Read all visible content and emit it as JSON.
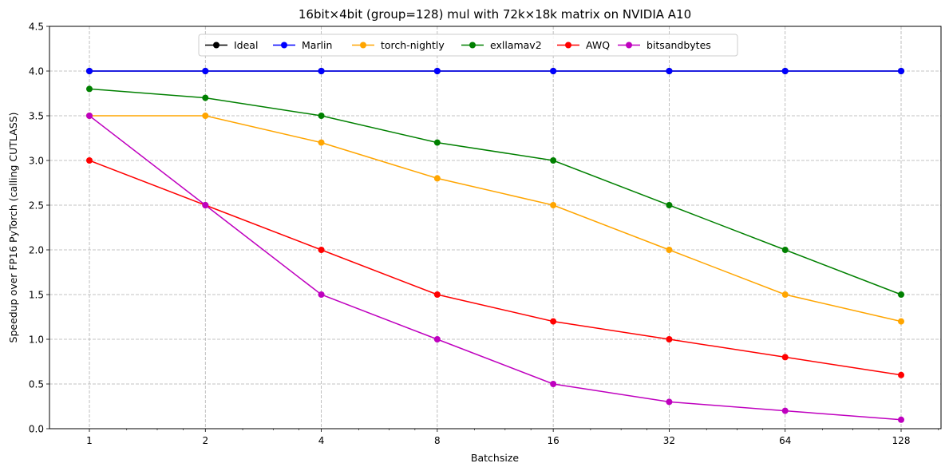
{
  "chart_data": {
    "type": "line",
    "title": "16bit×4bit (group=128) mul with 72k×18k matrix on NVIDIA A10",
    "xlabel": "Batchsize",
    "ylabel": "Speedup over FP16 PyTorch (calling CUTLASS)",
    "x_scale": "log2",
    "categories": [
      "1",
      "2",
      "4",
      "8",
      "16",
      "32",
      "64",
      "128"
    ],
    "x": [
      1,
      2,
      4,
      8,
      16,
      32,
      64,
      128
    ],
    "ylim": [
      0,
      4.5
    ],
    "yticks": [
      "0.0",
      "0.5",
      "1.0",
      "1.5",
      "2.0",
      "2.5",
      "3.0",
      "3.5",
      "4.0",
      "4.5"
    ],
    "grid": true,
    "legend_position": "top-center",
    "series": [
      {
        "name": "Ideal",
        "color": "#000000",
        "values": [
          4,
          4,
          4,
          4,
          4,
          4,
          4,
          4
        ]
      },
      {
        "name": "Marlin",
        "color": "#0000ff",
        "values": [
          4,
          4,
          4,
          4,
          4,
          4,
          4,
          4
        ]
      },
      {
        "name": "torch-nightly",
        "color": "#ffa500",
        "values": [
          3.5,
          3.5,
          3.2,
          2.8,
          2.5,
          2.0,
          1.5,
          1.2
        ]
      },
      {
        "name": "exllamav2",
        "color": "#008000",
        "values": [
          3.8,
          3.7,
          3.5,
          3.2,
          3.0,
          2.5,
          2.0,
          1.5
        ]
      },
      {
        "name": "AWQ",
        "color": "#ff0000",
        "values": [
          3.0,
          2.5,
          2.0,
          1.5,
          1.2,
          1.0,
          0.8,
          0.6
        ]
      },
      {
        "name": "bitsandbytes",
        "color": "#bf00bf",
        "values": [
          3.5,
          2.5,
          1.5,
          1.0,
          0.5,
          0.3,
          0.2,
          0.1
        ]
      }
    ]
  }
}
